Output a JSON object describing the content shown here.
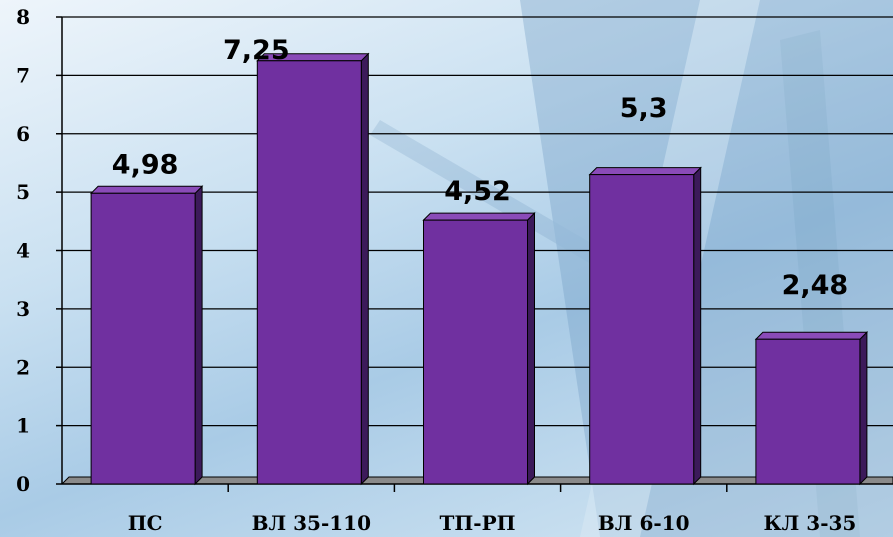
{
  "chart_data": {
    "type": "bar",
    "categories": [
      "ПС",
      "ВЛ 35-110",
      "ТП-РП",
      "ВЛ 6-10",
      "КЛ 3-35"
    ],
    "values": [
      4.98,
      7.25,
      4.52,
      5.3,
      2.48
    ],
    "data_labels": [
      "4,98",
      "7,25",
      "4,52",
      "5,3",
      "2,48"
    ],
    "yticks": [
      "0",
      "1",
      "2",
      "3",
      "4",
      "5",
      "6",
      "7",
      "8"
    ],
    "ylim": [
      0,
      8
    ],
    "grid": true,
    "title": "",
    "xlabel": "",
    "ylabel": "",
    "colors": {
      "bar_front": "#7030a0",
      "bar_side": "#3c1a5a",
      "bar_top": "#8a4bb8",
      "grid": "#000000"
    }
  }
}
